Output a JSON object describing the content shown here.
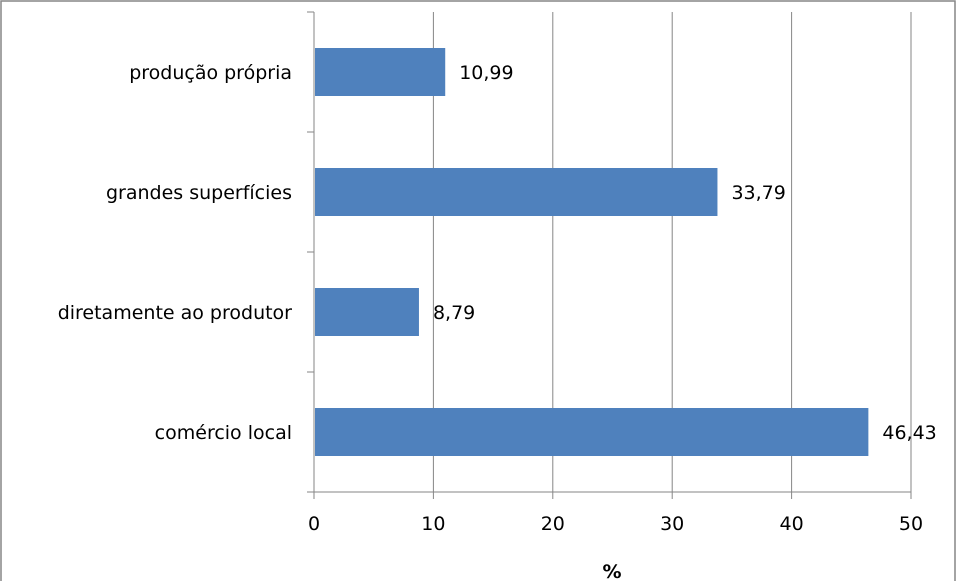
{
  "chart_data": {
    "type": "bar",
    "orientation": "horizontal",
    "categories": [
      "comércio local",
      "diretamente ao produtor",
      "grandes superfícies",
      "produção própria"
    ],
    "values": [
      46.43,
      8.79,
      33.79,
      10.99
    ],
    "value_labels": [
      "46,43",
      "8,79",
      "33,79",
      "10,99"
    ],
    "xlabel": "%",
    "xlim": [
      0,
      50
    ],
    "x_ticks": [
      0,
      10,
      20,
      30,
      40,
      50
    ],
    "x_tick_labels": [
      "0",
      "10",
      "20",
      "30",
      "40",
      "50"
    ],
    "grid": true,
    "bar_color": "#4F81BD",
    "grid_color": "#868686"
  }
}
